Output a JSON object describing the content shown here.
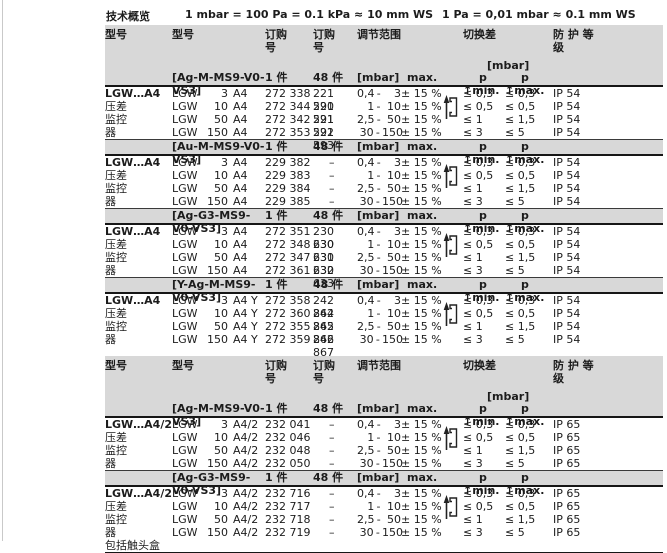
{
  "colors": {
    "header_bg": "#d8d8d8",
    "rule": "#161616"
  },
  "topbar": {
    "title": "技术概览",
    "formula_left": "1 mbar = 100 Pa = 0.1 kPa ≈ 10 mm WS",
    "formula_right": "1 Pa = 0,01 mbar ≈ 0.1 mm WS"
  },
  "column_headers": {
    "model_group": "型号",
    "model": "型号",
    "order_single": "订购\n号",
    "order_bulk": "订购\n号",
    "range": "调节范围",
    "switching_diff": "切换差",
    "switching_diff_unit": "[mbar]",
    "protection": "防 护 等\n级"
  },
  "subheader_labels": {
    "qty_single": "1 件",
    "qty_bulk": "48 件",
    "range_unit": "[mbar]",
    "range_max": "max.",
    "p_min": "p ↑min.",
    "p_max": "p ↑max.",
    "range_dash": "-"
  },
  "icons": {
    "pressure_rise": "pressure-rise-switch-icon"
  },
  "tables": [
    {
      "side_labels": [
        "LGW…A4",
        "压差",
        "监控",
        "器"
      ],
      "sections": [
        {
          "variant": "[Ag-M-MS9-V0-VS3]",
          "rows": [
            {
              "series": "LGW",
              "size": "3",
              "suffix": "A4",
              "order_single": "272 338",
              "order_bulk": "221 590",
              "range_low": "0,4",
              "range_high": "3",
              "tolerance": "± 15 %",
              "diff_min": "≤ 0,3",
              "diff_max": "≤ 0,3",
              "protection": "IP 54"
            },
            {
              "series": "LGW",
              "size": "10",
              "suffix": "A4",
              "order_single": "272 344",
              "order_bulk": "221 591",
              "range_low": "1",
              "range_high": "10",
              "tolerance": "± 15 %",
              "diff_min": "≤ 0,5",
              "diff_max": "≤ 0,5",
              "protection": "IP 54"
            },
            {
              "series": "LGW",
              "size": "50",
              "suffix": "A4",
              "order_single": "272 342",
              "order_bulk": "221 592",
              "range_low": "2,5",
              "range_high": "50",
              "tolerance": "± 15 %",
              "diff_min": "≤ 1",
              "diff_max": "≤ 1,5",
              "protection": "IP 54"
            },
            {
              "series": "LGW",
              "size": "150",
              "suffix": "A4",
              "order_single": "272 353",
              "order_bulk": "221 593",
              "range_low": "30",
              "range_high": "150",
              "tolerance": "± 15 %",
              "diff_min": "≤ 3",
              "diff_max": "≤ 5",
              "protection": "IP 54"
            }
          ]
        },
        {
          "variant": "[Au-M-MS9-V0-VS3]",
          "rows": [
            {
              "series": "LGW",
              "size": "3",
              "suffix": "A4",
              "order_single": "229 382",
              "order_bulk": "–",
              "range_low": "0,4",
              "range_high": "3",
              "tolerance": "± 15 %",
              "diff_min": "≤ 0,3",
              "diff_max": "≤ 0,3",
              "protection": "IP 54"
            },
            {
              "series": "LGW",
              "size": "10",
              "suffix": "A4",
              "order_single": "229 383",
              "order_bulk": "–",
              "range_low": "1",
              "range_high": "10",
              "tolerance": "± 15 %",
              "diff_min": "≤ 0,5",
              "diff_max": "≤ 0,5",
              "protection": "IP 54"
            },
            {
              "series": "LGW",
              "size": "50",
              "suffix": "A4",
              "order_single": "229 384",
              "order_bulk": "–",
              "range_low": "2,5",
              "range_high": "50",
              "tolerance": "± 15 %",
              "diff_min": "≤ 1",
              "diff_max": "≤ 1,5",
              "protection": "IP 54"
            },
            {
              "series": "LGW",
              "size": "150",
              "suffix": "A4",
              "order_single": "229 385",
              "order_bulk": "–",
              "range_low": "30",
              "range_high": "150",
              "tolerance": "± 15 %",
              "diff_min": "≤ 3",
              "diff_max": "≤ 5",
              "protection": "IP 54"
            }
          ]
        },
        {
          "variant": "[Ag-G3-MS9-V0-VS3]",
          "rows": [
            {
              "series": "LGW",
              "size": "3",
              "suffix": "A4",
              "order_single": "272 351",
              "order_bulk": "230 630",
              "range_low": "0,4",
              "range_high": "3",
              "tolerance": "± 15 %",
              "diff_min": "≤ 0,3",
              "diff_max": "≤ 0,3",
              "protection": "IP 54"
            },
            {
              "series": "LGW",
              "size": "10",
              "suffix": "A4",
              "order_single": "272 348",
              "order_bulk": "230 631",
              "range_low": "1",
              "range_high": "10",
              "tolerance": "± 15 %",
              "diff_min": "≤ 0,5",
              "diff_max": "≤ 0,5",
              "protection": "IP 54"
            },
            {
              "series": "LGW",
              "size": "50",
              "suffix": "A4",
              "order_single": "272 347",
              "order_bulk": "230 632",
              "range_low": "2,5",
              "range_high": "50",
              "tolerance": "± 15 %",
              "diff_min": "≤ 1",
              "diff_max": "≤ 1,5",
              "protection": "IP 54"
            },
            {
              "series": "LGW",
              "size": "150",
              "suffix": "A4",
              "order_single": "272 361",
              "order_bulk": "230 633",
              "range_low": "30",
              "range_high": "150",
              "tolerance": "± 15 %",
              "diff_min": "≤ 3",
              "diff_max": "≤ 5",
              "protection": "IP 54"
            }
          ]
        },
        {
          "variant": "[Y-Ag-M-MS9-V0-VS3]",
          "rows": [
            {
              "series": "LGW",
              "size": "3",
              "suffix": "A4 Y",
              "order_single": "272 358",
              "order_bulk": "242 864",
              "range_low": "0,4",
              "range_high": "3",
              "tolerance": "± 15 %",
              "diff_min": "≤ 0,3",
              "diff_max": "≤ 0,3",
              "protection": "IP 54"
            },
            {
              "series": "LGW",
              "size": "10",
              "suffix": "A4 Y",
              "order_single": "272 360",
              "order_bulk": "242 865",
              "range_low": "1",
              "range_high": "10",
              "tolerance": "± 15 %",
              "diff_min": "≤ 0,5",
              "diff_max": "≤ 0,5",
              "protection": "IP 54"
            },
            {
              "series": "LGW",
              "size": "50",
              "suffix": "A4 Y",
              "order_single": "272 355",
              "order_bulk": "242 866",
              "range_low": "2,5",
              "range_high": "50",
              "tolerance": "± 15 %",
              "diff_min": "≤ 1",
              "diff_max": "≤ 1,5",
              "protection": "IP 54"
            },
            {
              "series": "LGW",
              "size": "150",
              "suffix": "A4 Y",
              "order_single": "272 359",
              "order_bulk": "242 867",
              "range_low": "30",
              "range_high": "150",
              "tolerance": "± 15 %",
              "diff_min": "≤ 3",
              "diff_max": "≤ 5",
              "protection": "IP 54"
            }
          ]
        }
      ]
    },
    {
      "side_labels": [
        "LGW…A4/2",
        "压差",
        "监控",
        "器"
      ],
      "sections": [
        {
          "variant": "[Ag-M-MS9-V0-VS3]",
          "rows": [
            {
              "series": "LGW",
              "size": "3",
              "suffix": "A4/2",
              "order_single": "232 041",
              "order_bulk": "–",
              "range_low": "0,4",
              "range_high": "3",
              "tolerance": "± 15 %",
              "diff_min": "≤ 0,3",
              "diff_max": "≤ 0,3",
              "protection": "IP 65"
            },
            {
              "series": "LGW",
              "size": "10",
              "suffix": "A4/2",
              "order_single": "232 046",
              "order_bulk": "–",
              "range_low": "1",
              "range_high": "10",
              "tolerance": "± 15 %",
              "diff_min": "≤ 0,5",
              "diff_max": "≤ 0,5",
              "protection": "IP 65"
            },
            {
              "series": "LGW",
              "size": "50",
              "suffix": "A4/2",
              "order_single": "232 048",
              "order_bulk": "–",
              "range_low": "2,5",
              "range_high": "50",
              "tolerance": "± 15 %",
              "diff_min": "≤ 1",
              "diff_max": "≤ 1,5",
              "protection": "IP 65"
            },
            {
              "series": "LGW",
              "size": "150",
              "suffix": "A4/2",
              "order_single": "232 050",
              "order_bulk": "–",
              "range_low": "30",
              "range_high": "150",
              "tolerance": "± 15 %",
              "diff_min": "≤ 3",
              "diff_max": "≤ 5",
              "protection": "IP 65"
            }
          ]
        },
        {
          "variant": "[Ag-G3-MS9-V0-VS3]",
          "footnote": "包括触头盒",
          "rows": [
            {
              "series": "LGW",
              "size": "3",
              "suffix": "A4/2",
              "order_single": "232 716",
              "order_bulk": "–",
              "range_low": "0,4",
              "range_high": "3",
              "tolerance": "± 15 %",
              "diff_min": "≤ 0,3",
              "diff_max": "≤ 0,3",
              "protection": "IP 65"
            },
            {
              "series": "LGW",
              "size": "10",
              "suffix": "A4/2",
              "order_single": "232 717",
              "order_bulk": "–",
              "range_low": "1",
              "range_high": "10",
              "tolerance": "± 15 %",
              "diff_min": "≤ 0,5",
              "diff_max": "≤ 0,5",
              "protection": "IP 65"
            },
            {
              "series": "LGW",
              "size": "50",
              "suffix": "A4/2",
              "order_single": "232 718",
              "order_bulk": "–",
              "range_low": "2,5",
              "range_high": "50",
              "tolerance": "± 15 %",
              "diff_min": "≤ 1",
              "diff_max": "≤ 1,5",
              "protection": "IP 65"
            },
            {
              "series": "LGW",
              "size": "150",
              "suffix": "A4/2",
              "order_single": "232 719",
              "order_bulk": "–",
              "range_low": "30",
              "range_high": "150",
              "tolerance": "± 15 %",
              "diff_min": "≤ 3",
              "diff_max": "≤ 5",
              "protection": "IP 65"
            }
          ]
        }
      ]
    }
  ]
}
